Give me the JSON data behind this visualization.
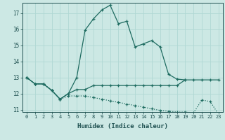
{
  "xlabel": "Humidex (Indice chaleur)",
  "background_color": "#cce8e4",
  "line_color": "#1e6b60",
  "grid_color": "#b0d8d4",
  "xlim": [
    -0.5,
    23.5
  ],
  "ylim": [
    10.85,
    17.65
  ],
  "yticks": [
    11,
    12,
    13,
    14,
    15,
    16,
    17
  ],
  "xticks": [
    0,
    1,
    2,
    3,
    4,
    5,
    6,
    7,
    8,
    9,
    10,
    11,
    12,
    13,
    14,
    15,
    16,
    17,
    18,
    19,
    20,
    21,
    22,
    23
  ],
  "series": [
    {
      "x": [
        0,
        1,
        2,
        3,
        4,
        5,
        6,
        7,
        8,
        9,
        10,
        11,
        12,
        13,
        14,
        15,
        16,
        17,
        18,
        19
      ],
      "y": [
        13.0,
        12.6,
        12.6,
        12.2,
        11.65,
        12.0,
        13.0,
        15.95,
        16.65,
        17.2,
        17.5,
        16.35,
        16.5,
        14.9,
        15.1,
        15.3,
        14.9,
        13.2,
        12.9,
        12.85
      ],
      "dotted": false
    },
    {
      "x": [
        0,
        1,
        2,
        3,
        4,
        5,
        6,
        7,
        8,
        9,
        10,
        11,
        12,
        13,
        14,
        15,
        16,
        17,
        18,
        19,
        20,
        21,
        22,
        23
      ],
      "y": [
        13.0,
        12.6,
        12.6,
        12.2,
        11.65,
        12.0,
        12.25,
        12.25,
        12.5,
        12.5,
        12.5,
        12.5,
        12.5,
        12.5,
        12.5,
        12.5,
        12.5,
        12.5,
        12.5,
        12.85,
        12.85,
        12.85,
        12.85,
        12.85
      ],
      "dotted": false
    },
    {
      "x": [
        0,
        1,
        2,
        3,
        4,
        5,
        6,
        7,
        8,
        9,
        10,
        11,
        12,
        13,
        14,
        15,
        16,
        17,
        18,
        19,
        20,
        21,
        22,
        23
      ],
      "y": [
        13.0,
        12.6,
        12.6,
        12.2,
        11.65,
        11.85,
        11.85,
        11.85,
        11.75,
        11.65,
        11.55,
        11.45,
        11.35,
        11.25,
        11.15,
        11.05,
        10.95,
        10.9,
        10.85,
        10.85,
        10.8,
        11.6,
        11.5,
        10.7
      ],
      "dotted": true
    }
  ]
}
